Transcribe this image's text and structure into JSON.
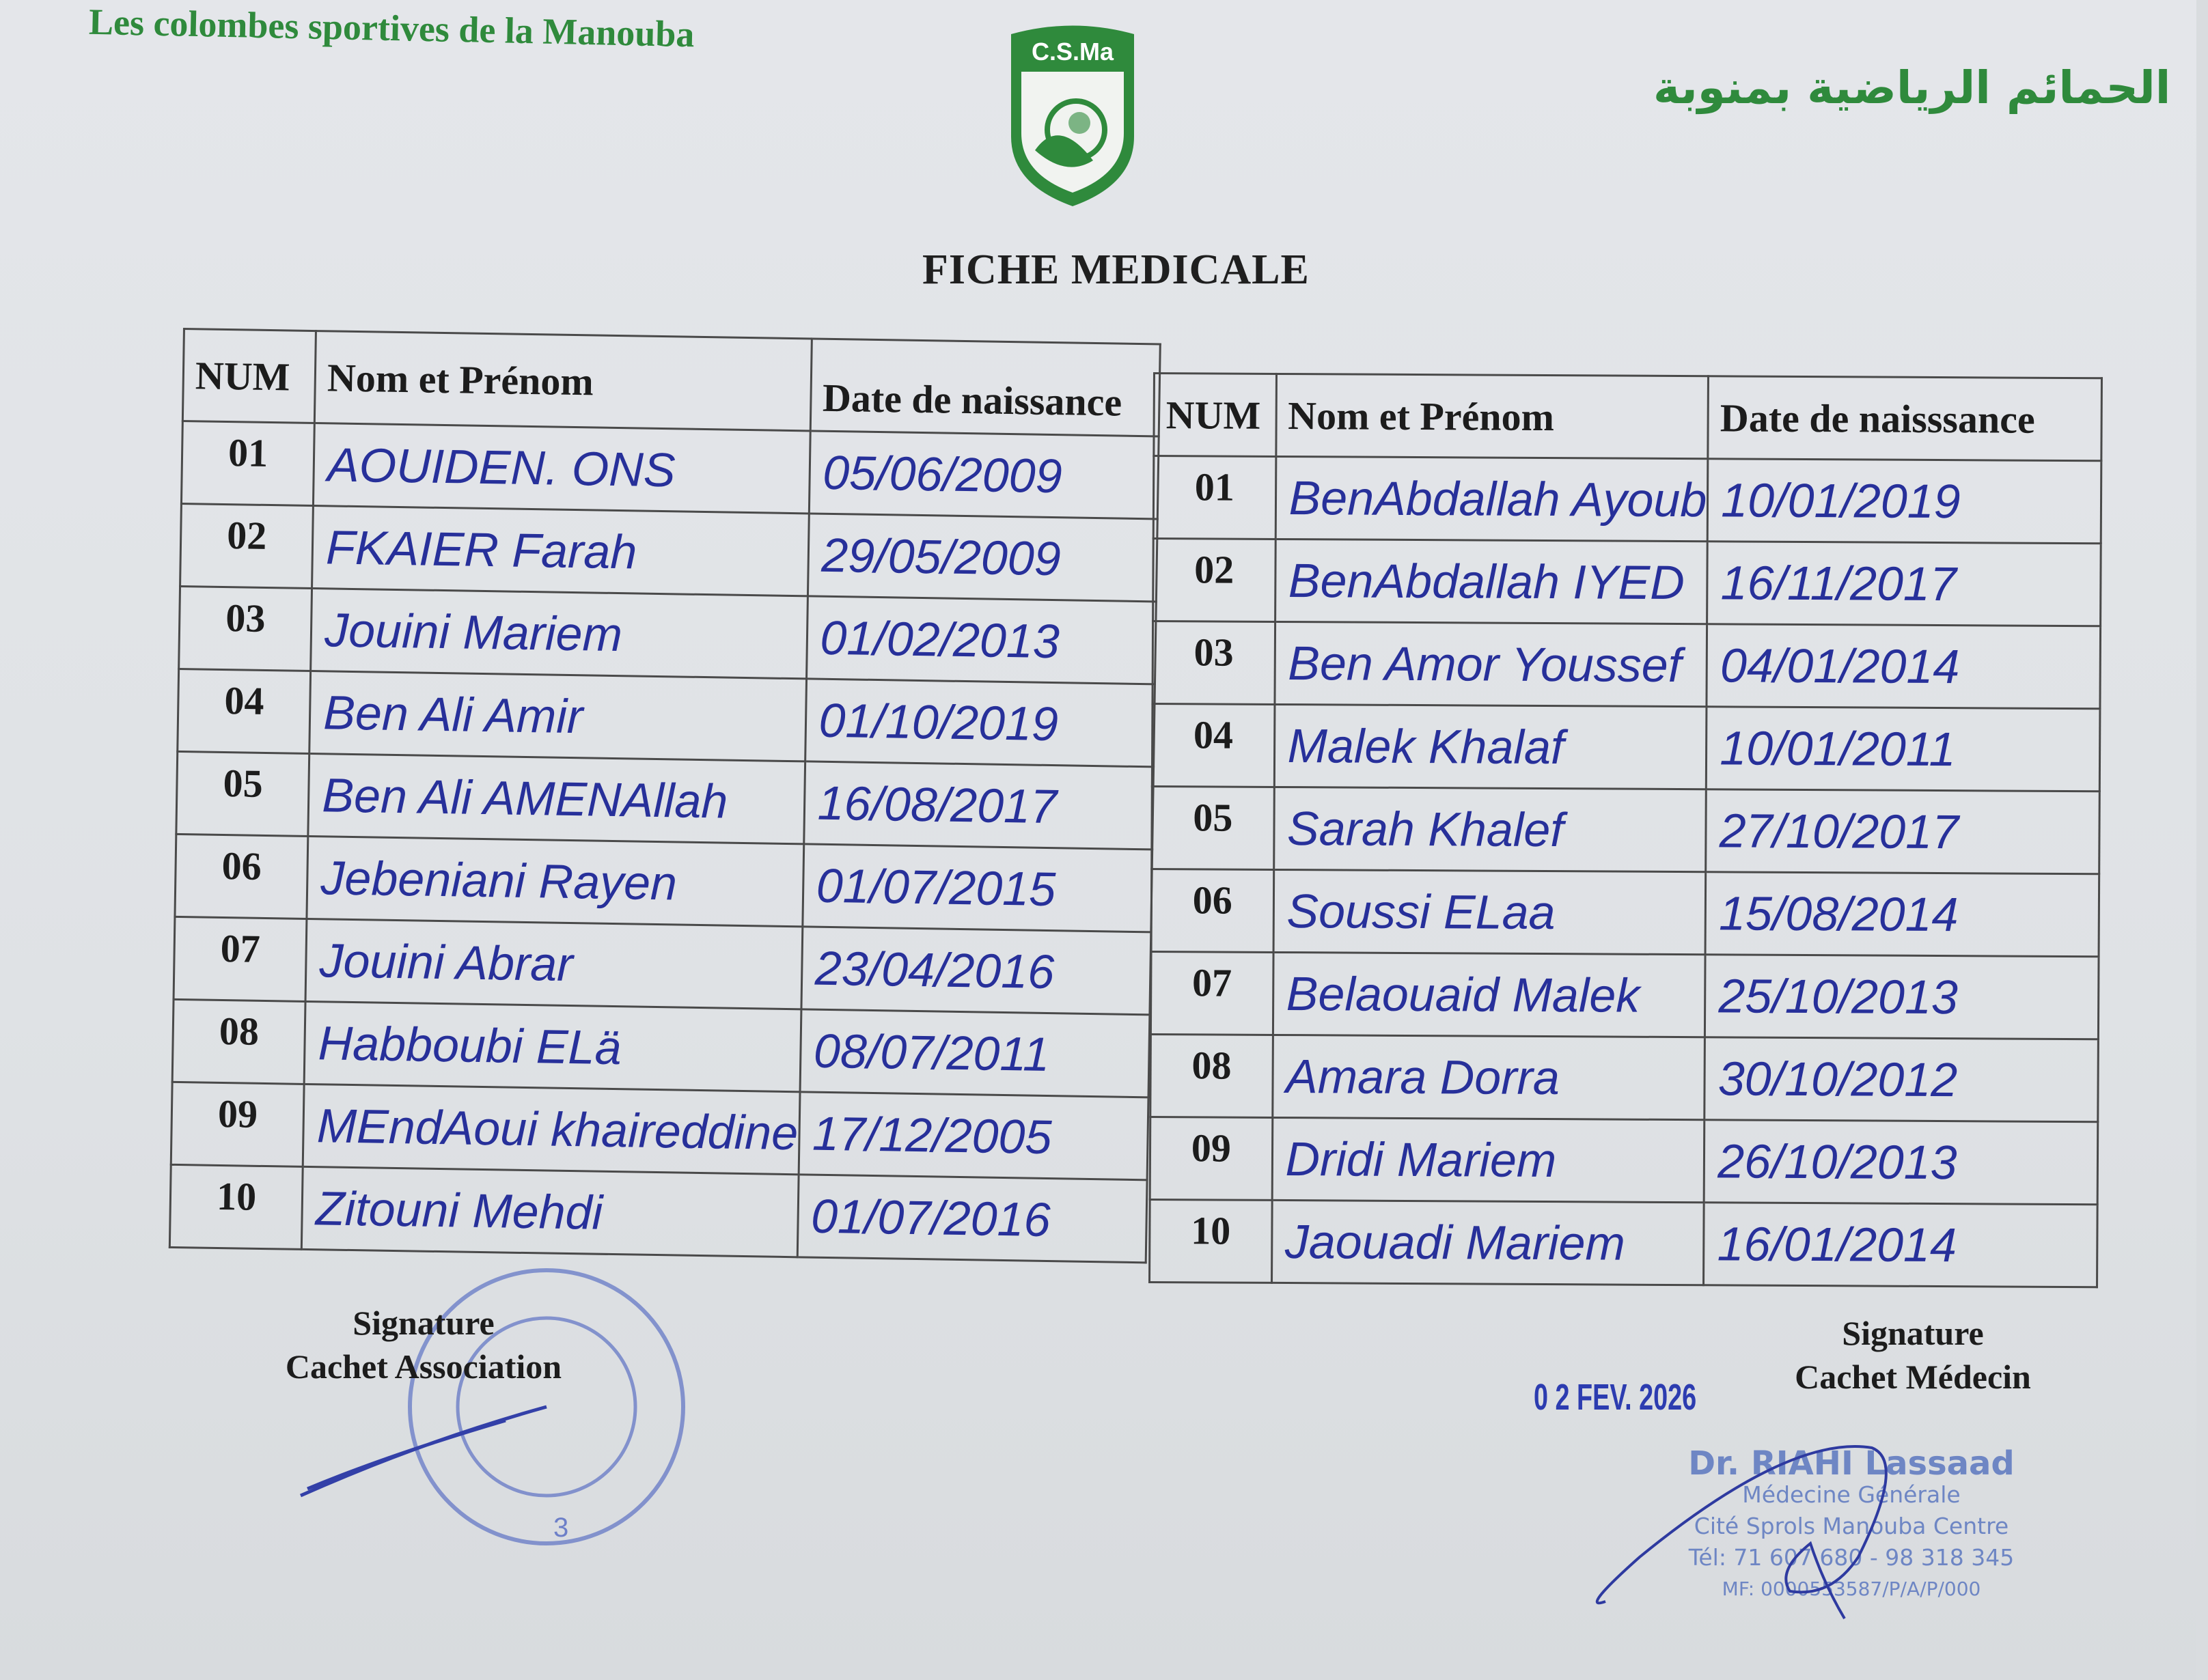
{
  "header": {
    "club_name_fr": "Les colombes sportives de la Manouba",
    "club_name_ar": "الحمائم الرياضية بمنوبة",
    "logo_text": "C.S.Ma",
    "title": "FICHE MEDICALE",
    "brand_color": "#2f8a3c"
  },
  "table_left": {
    "headers": [
      "NUM",
      "Nom et Prénom",
      "Date de naissance"
    ],
    "rows": [
      {
        "num": "01",
        "name": "AOUIDEN. ONS",
        "dob": "05/06/2009"
      },
      {
        "num": "02",
        "name": "FKAIER Farah",
        "dob": "29/05/2009"
      },
      {
        "num": "03",
        "name": "Jouini Mariem",
        "dob": "01/02/2013"
      },
      {
        "num": "04",
        "name": "Ben Ali Amir",
        "dob": "01/10/2019"
      },
      {
        "num": "05",
        "name": "Ben Ali AMENAllah",
        "dob": "16/08/2017"
      },
      {
        "num": "06",
        "name": "Jebeniani Rayen",
        "dob": "01/07/2015"
      },
      {
        "num": "07",
        "name": "Jouini Abrar",
        "dob": "23/04/2016"
      },
      {
        "num": "08",
        "name": "Habboubi ELä",
        "dob": "08/07/2011"
      },
      {
        "num": "09",
        "name": "MEndAoui khaireddine",
        "dob": "17/12/2005"
      },
      {
        "num": "10",
        "name": "Zitouni Mehdi",
        "dob": "01/07/2016"
      }
    ]
  },
  "table_right": {
    "headers": [
      "NUM",
      "Nom et Prénom",
      "Date de naisssance"
    ],
    "rows": [
      {
        "num": "01",
        "name": "BenAbdallah Ayoub",
        "dob": "10/01/2019"
      },
      {
        "num": "02",
        "name": "BenAbdallah IYED",
        "dob": "16/11/2017"
      },
      {
        "num": "03",
        "name": "Ben Amor Youssef",
        "dob": "04/01/2014"
      },
      {
        "num": "04",
        "name": "Malek Khalaf",
        "dob": "10/01/2011"
      },
      {
        "num": "05",
        "name": "Sarah Khalef",
        "dob": "27/10/2017"
      },
      {
        "num": "06",
        "name": "Soussi ELaa",
        "dob": "15/08/2014"
      },
      {
        "num": "07",
        "name": "Belaouaid Malek",
        "dob": "25/10/2013"
      },
      {
        "num": "08",
        "name": "Amara Dorra",
        "dob": "30/10/2012"
      },
      {
        "num": "09",
        "name": "Dridi Mariem",
        "dob": "26/10/2013"
      },
      {
        "num": "10",
        "name": "Jaouadi Mariem",
        "dob": "16/01/2014"
      }
    ]
  },
  "footer": {
    "assoc_sig_line1": "Signature",
    "assoc_sig_line2": "Cachet Association",
    "doctor_sig_line1": "Signature",
    "doctor_sig_line2": "Cachet Médecin",
    "date_stamp": "0 2 FEV. 2026",
    "doctor_stamp": {
      "name": "Dr. RIAHI Lassaad",
      "specialty": "Médecine Générale",
      "address": "Cité Sprols Manouba Centre",
      "phone": "Tél: 71 607 680 - 98 318 345",
      "mf": "MF: 0000553587/P/A/P/000"
    },
    "assoc_stamp_number": "3",
    "ink_color": "#27309a"
  }
}
